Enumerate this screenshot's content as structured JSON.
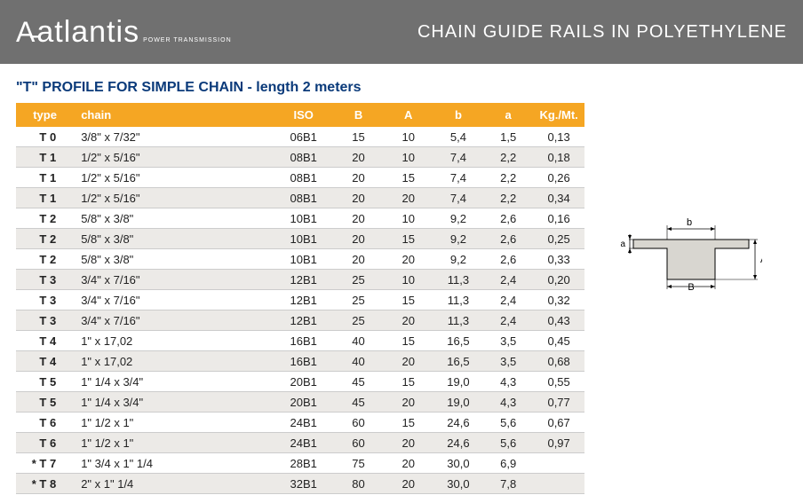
{
  "header": {
    "logo_text": "atlantis",
    "logo_sub": "POWER TRANSMISSION",
    "title": "CHAIN GUIDE RAILS IN POLYETHYLENE"
  },
  "section_title": "\"T\" PROFILE FOR SIMPLE CHAIN - length 2 meters",
  "columns": [
    "type",
    "chain",
    "ISO",
    "B",
    "A",
    "b",
    "a",
    "Kg./Mt."
  ],
  "rows": [
    {
      "type": "T 0",
      "chain": "3/8\"  x  7/32\"",
      "iso": "06B1",
      "B": "15",
      "A": "10",
      "b": "5,4",
      "a": "1,5",
      "kg": "0,13"
    },
    {
      "type": "T 1",
      "chain": "1/2\"  x  5/16\"",
      "iso": "08B1",
      "B": "20",
      "A": "10",
      "b": "7,4",
      "a": "2,2",
      "kg": "0,18"
    },
    {
      "type": "T 1",
      "chain": "1/2\"  x  5/16\"",
      "iso": "08B1",
      "B": "20",
      "A": "15",
      "b": "7,4",
      "a": "2,2",
      "kg": "0,26"
    },
    {
      "type": "T 1",
      "chain": "1/2\"  x  5/16\"",
      "iso": "08B1",
      "B": "20",
      "A": "20",
      "b": "7,4",
      "a": "2,2",
      "kg": "0,34"
    },
    {
      "type": "T 2",
      "chain": "5/8\"  x  3/8\"",
      "iso": "10B1",
      "B": "20",
      "A": "10",
      "b": "9,2",
      "a": "2,6",
      "kg": "0,16"
    },
    {
      "type": "T 2",
      "chain": "5/8\"  x  3/8\"",
      "iso": "10B1",
      "B": "20",
      "A": "15",
      "b": "9,2",
      "a": "2,6",
      "kg": "0,25"
    },
    {
      "type": "T 2",
      "chain": "5/8\"  x  3/8\"",
      "iso": "10B1",
      "B": "20",
      "A": "20",
      "b": "9,2",
      "a": "2,6",
      "kg": "0,33"
    },
    {
      "type": "T 3",
      "chain": "3/4\"  x  7/16\"",
      "iso": "12B1",
      "B": "25",
      "A": "10",
      "b": "11,3",
      "a": "2,4",
      "kg": "0,20"
    },
    {
      "type": "T 3",
      "chain": "3/4\"  x  7/16\"",
      "iso": "12B1",
      "B": "25",
      "A": "15",
      "b": "11,3",
      "a": "2,4",
      "kg": "0,32"
    },
    {
      "type": "T 3",
      "chain": "3/4\"  x  7/16\"",
      "iso": "12B1",
      "B": "25",
      "A": "20",
      "b": "11,3",
      "a": "2,4",
      "kg": "0,43"
    },
    {
      "type": "T 4",
      "chain": "1\"  x  17,02",
      "iso": "16B1",
      "B": "40",
      "A": "15",
      "b": "16,5",
      "a": "3,5",
      "kg": "0,45"
    },
    {
      "type": "T 4",
      "chain": "1\"  x  17,02",
      "iso": "16B1",
      "B": "40",
      "A": "20",
      "b": "16,5",
      "a": "3,5",
      "kg": "0,68"
    },
    {
      "type": "T 5",
      "chain": "1\" 1/4  x  3/4\"",
      "iso": "20B1",
      "B": "45",
      "A": "15",
      "b": "19,0",
      "a": "4,3",
      "kg": "0,55"
    },
    {
      "type": "T 5",
      "chain": "1\" 1/4  x  3/4\"",
      "iso": "20B1",
      "B": "45",
      "A": "20",
      "b": "19,0",
      "a": "4,3",
      "kg": "0,77"
    },
    {
      "type": "T 6",
      "chain": "1\" 1/2  x  1\"",
      "iso": "24B1",
      "B": "60",
      "A": "15",
      "b": "24,6",
      "a": "5,6",
      "kg": "0,67"
    },
    {
      "type": "T 6",
      "chain": "1\" 1/2  x  1\"",
      "iso": "24B1",
      "B": "60",
      "A": "20",
      "b": "24,6",
      "a": "5,6",
      "kg": "0,97"
    },
    {
      "type": "* T 7",
      "chain": "1\" 3/4  x  1\" 1/4",
      "iso": "28B1",
      "B": "75",
      "A": "20",
      "b": "30,0",
      "a": "6,9",
      "kg": ""
    },
    {
      "type": "* T 8",
      "chain": "2\"  x  1\" 1/4",
      "iso": "32B1",
      "B": "80",
      "A": "20",
      "b": "30,0",
      "a": "7,8",
      "kg": ""
    }
  ],
  "diagram": {
    "labels": {
      "b": "b",
      "a": "a",
      "A": "A",
      "B": "B"
    },
    "stroke": "#000000",
    "fill": "#d8d6d0",
    "fontsize": 11
  },
  "colors": {
    "header_bg": "#707070",
    "header_text": "#ffffff",
    "th_bg": "#f5a623",
    "th_text": "#ffffff",
    "title_text": "#0a3a7a",
    "row_even": "#eceae7",
    "border": "#cccccc"
  }
}
